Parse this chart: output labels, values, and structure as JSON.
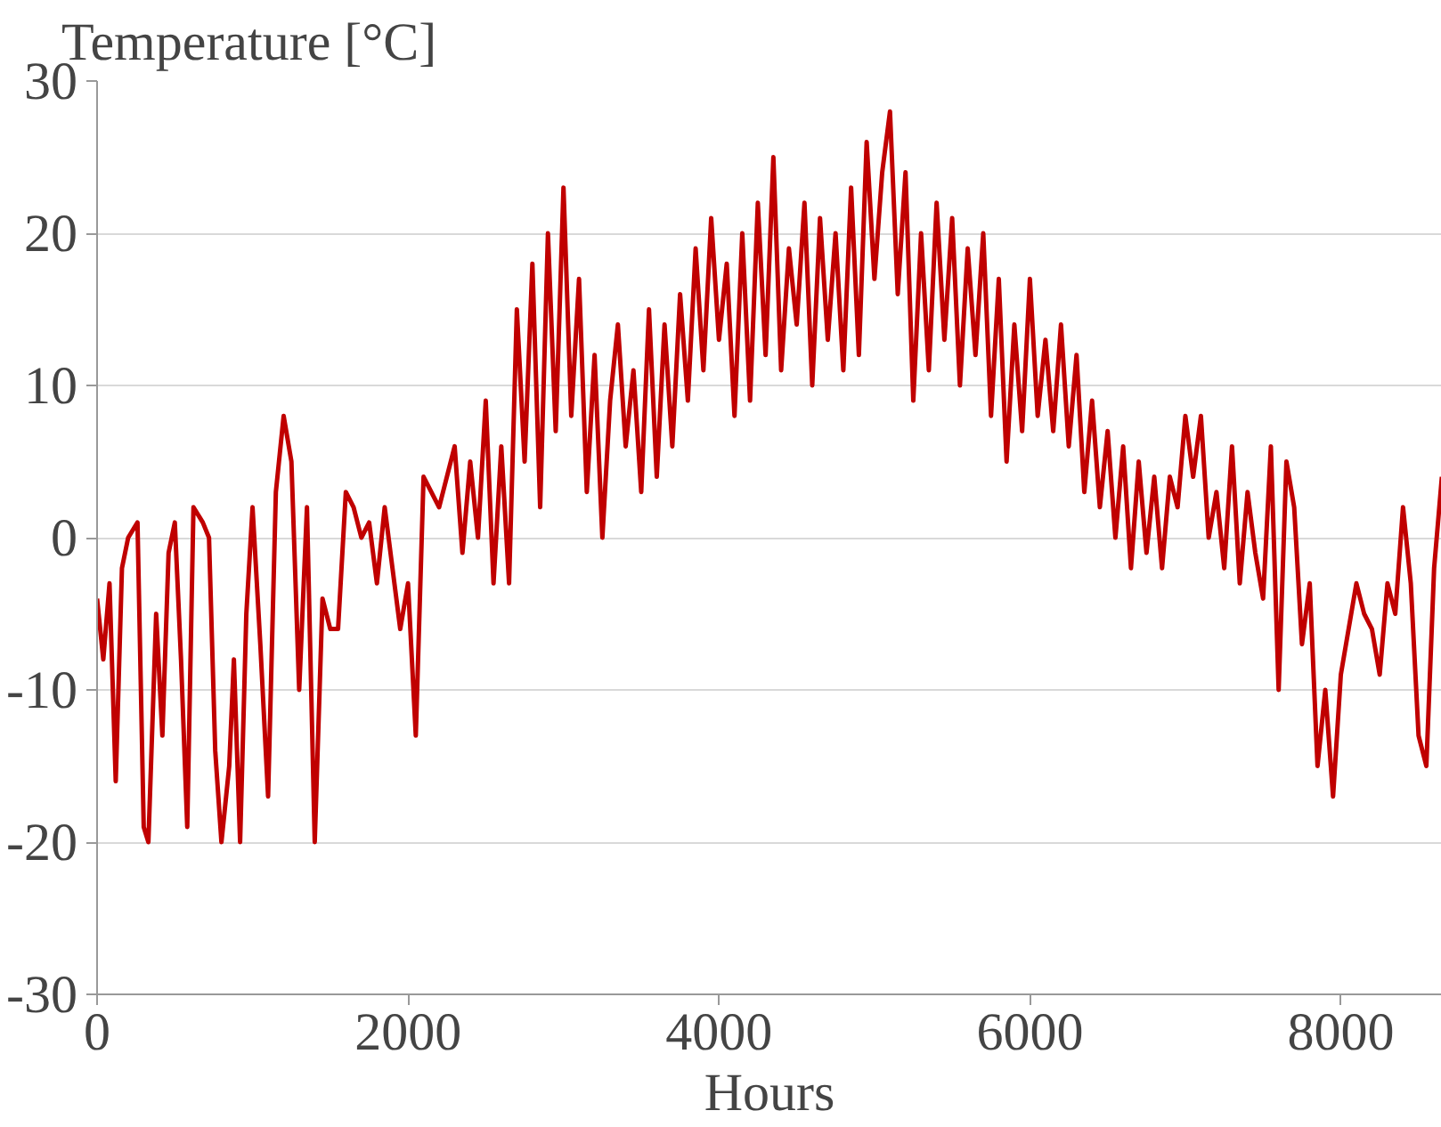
{
  "chart_data": {
    "type": "line",
    "ylabel": "Temperature [°C]",
    "xlabel": "Hours",
    "xlim": [
      0,
      8650
    ],
    "ylim": [
      -30,
      30
    ],
    "xticks": [
      0,
      2000,
      4000,
      6000,
      8000
    ],
    "yticks": [
      -30,
      -20,
      -10,
      0,
      10,
      20,
      30
    ],
    "grid": "y",
    "x": [
      0,
      40,
      80,
      120,
      160,
      200,
      260,
      300,
      330,
      380,
      420,
      460,
      500,
      540,
      580,
      620,
      680,
      720,
      760,
      800,
      850,
      880,
      920,
      960,
      1000,
      1050,
      1100,
      1150,
      1200,
      1250,
      1300,
      1350,
      1400,
      1450,
      1500,
      1550,
      1600,
      1650,
      1700,
      1750,
      1800,
      1850,
      1900,
      1950,
      2000,
      2050,
      2100,
      2200,
      2300,
      2350,
      2400,
      2450,
      2500,
      2550,
      2600,
      2650,
      2700,
      2750,
      2800,
      2850,
      2900,
      2950,
      3000,
      3050,
      3100,
      3150,
      3200,
      3250,
      3300,
      3350,
      3400,
      3450,
      3500,
      3550,
      3600,
      3650,
      3700,
      3750,
      3800,
      3850,
      3900,
      3950,
      4000,
      4050,
      4100,
      4150,
      4200,
      4250,
      4300,
      4350,
      4400,
      4450,
      4500,
      4550,
      4600,
      4650,
      4700,
      4750,
      4800,
      4850,
      4900,
      4950,
      5000,
      5050,
      5100,
      5150,
      5200,
      5250,
      5300,
      5350,
      5400,
      5450,
      5500,
      5550,
      5600,
      5650,
      5700,
      5750,
      5800,
      5850,
      5900,
      5950,
      6000,
      6050,
      6100,
      6150,
      6200,
      6250,
      6300,
      6350,
      6400,
      6450,
      6500,
      6550,
      6600,
      6650,
      6700,
      6750,
      6800,
      6850,
      6900,
      6950,
      7000,
      7050,
      7100,
      7150,
      7200,
      7250,
      7300,
      7350,
      7400,
      7450,
      7500,
      7550,
      7600,
      7650,
      7700,
      7750,
      7800,
      7850,
      7900,
      7950,
      8000,
      8050,
      8100,
      8150,
      8200,
      8250,
      8300,
      8350,
      8400,
      8450,
      8500,
      8550,
      8600,
      8650
    ],
    "series": [
      {
        "color": "#c00000",
        "values": [
          -4,
          -8,
          -3,
          -16,
          -2,
          0,
          1,
          -19,
          -20,
          -5,
          -13,
          -1,
          1,
          -8,
          -19,
          2,
          1,
          0,
          -14,
          -20,
          -15,
          -8,
          -20,
          -5,
          2,
          -7,
          -17,
          3,
          8,
          5,
          -10,
          2,
          -20,
          -4,
          -6,
          -6,
          3,
          2,
          0,
          1,
          -3,
          2,
          -2,
          -6,
          -3,
          -13,
          4,
          2,
          6,
          -1,
          5,
          0,
          9,
          -3,
          6,
          -3,
          15,
          5,
          18,
          2,
          20,
          7,
          23,
          8,
          17,
          3,
          12,
          0,
          9,
          14,
          6,
          11,
          3,
          15,
          4,
          14,
          6,
          16,
          9,
          19,
          11,
          21,
          13,
          18,
          8,
          20,
          9,
          22,
          12,
          25,
          11,
          19,
          14,
          22,
          10,
          21,
          13,
          20,
          11,
          23,
          12,
          26,
          17,
          24,
          28,
          16,
          24,
          9,
          20,
          11,
          22,
          13,
          21,
          10,
          19,
          12,
          20,
          8,
          17,
          5,
          14,
          7,
          17,
          8,
          13,
          7,
          14,
          6,
          12,
          3,
          9,
          2,
          7,
          0,
          6,
          -2,
          5,
          -1,
          4,
          -2,
          4,
          2,
          8,
          4,
          8,
          0,
          3,
          -2,
          6,
          -3,
          3,
          -1,
          -4,
          6,
          -10,
          5,
          2,
          -7,
          -3,
          -15,
          -10,
          -17,
          -9,
          -6,
          -3,
          -5,
          -6,
          -9,
          -3,
          -5,
          2,
          -3,
          -13,
          -15,
          -2,
          4
        ]
      }
    ]
  }
}
